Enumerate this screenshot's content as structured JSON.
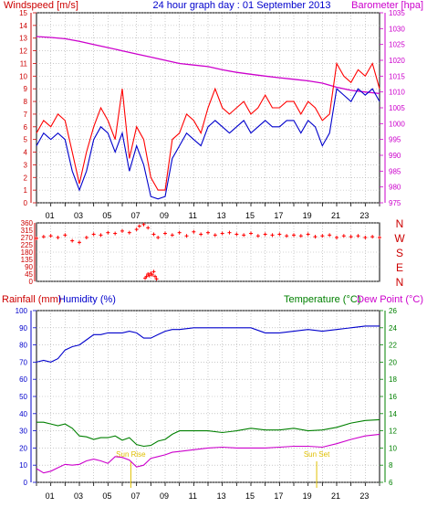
{
  "chart_data": [
    {
      "type": "line",
      "title": "24 hour graph day : 01 September 2013",
      "left_axis_label": "Windspeed [m/s]",
      "right_axis_label": "Barometer [hpa]",
      "x_ticks": [
        "01",
        "03",
        "05",
        "07",
        "09",
        "11",
        "13",
        "15",
        "17",
        "19",
        "21",
        "23"
      ],
      "x_range": [
        0,
        24
      ],
      "left_ylim": [
        0,
        15
      ],
      "left_ticks": [
        0,
        1,
        2,
        3,
        4,
        5,
        6,
        7,
        8,
        9,
        10,
        11,
        12,
        13,
        14,
        15
      ],
      "right_ylim": [
        975,
        1035
      ],
      "right_ticks": [
        975,
        980,
        985,
        990,
        995,
        1000,
        1005,
        1010,
        1015,
        1020,
        1025,
        1030,
        1035
      ],
      "grid": true,
      "series": [
        {
          "name": "",
          "color": "#ff0000",
          "axis": "left",
          "x": [
            0,
            0.5,
            1,
            1.5,
            2,
            2.5,
            3,
            3.5,
            4,
            4.5,
            5,
            5.5,
            6,
            6.5,
            7,
            7.5,
            8,
            8.5,
            9,
            9.5,
            10,
            10.5,
            11,
            11.5,
            12,
            12.5,
            13,
            13.5,
            14,
            14.5,
            15,
            15.5,
            16,
            16.5,
            17,
            17.5,
            18,
            18.5,
            19,
            19.5,
            20,
            20.5,
            21,
            21.5,
            22,
            22.5,
            23,
            23.5,
            24
          ],
          "values": [
            5.5,
            6.5,
            6,
            7,
            6.5,
            4,
            1.5,
            4,
            6,
            7.5,
            6.5,
            5,
            9,
            3.5,
            6,
            5,
            2,
            1,
            1,
            5,
            5.5,
            7,
            6.5,
            5.5,
            7.5,
            9,
            7.5,
            7,
            7.5,
            8,
            7,
            7.5,
            8.5,
            7.5,
            7.5,
            8,
            8,
            7,
            8,
            7.5,
            6.5,
            7,
            11,
            10,
            9.5,
            10.5,
            10,
            11,
            9
          ]
        },
        {
          "name": "",
          "color": "#0000cc",
          "axis": "left",
          "x": [
            0,
            0.5,
            1,
            1.5,
            2,
            2.5,
            3,
            3.5,
            4,
            4.5,
            5,
            5.5,
            6,
            6.5,
            7,
            7.5,
            8,
            8.5,
            9,
            9.5,
            10,
            10.5,
            11,
            11.5,
            12,
            12.5,
            13,
            13.5,
            14,
            14.5,
            15,
            15.5,
            16,
            16.5,
            17,
            17.5,
            18,
            18.5,
            19,
            19.5,
            20,
            20.5,
            21,
            21.5,
            22,
            22.5,
            23,
            23.5,
            24
          ],
          "values": [
            4.5,
            5.5,
            5,
            5.5,
            5,
            2.5,
            1,
            2.5,
            5,
            6,
            5.5,
            4,
            5.5,
            2.5,
            4.5,
            3,
            0.5,
            0.3,
            0.5,
            3.5,
            4.5,
            5.5,
            5,
            4.5,
            6,
            6.5,
            6,
            5.5,
            6,
            6.5,
            5.5,
            6,
            6.5,
            6,
            6,
            6.5,
            6.5,
            5.5,
            6.5,
            6,
            4.5,
            5.5,
            9,
            8.5,
            8,
            9,
            8.5,
            9,
            8
          ]
        },
        {
          "name": "",
          "color": "#cc00cc",
          "axis": "right",
          "x": [
            0,
            1,
            2,
            3,
            4,
            5,
            6,
            7,
            8,
            9,
            10,
            11,
            12,
            13,
            14,
            15,
            16,
            17,
            18,
            19,
            20,
            21,
            22,
            23,
            24
          ],
          "values": [
            1027.5,
            1027.2,
            1026.8,
            1026,
            1025,
            1024,
            1023,
            1022,
            1021,
            1020,
            1019,
            1018.5,
            1018,
            1017,
            1016.2,
            1015.6,
            1015,
            1014.5,
            1014,
            1013.5,
            1012.8,
            1011.5,
            1010.5,
            1010,
            1009.5
          ]
        }
      ]
    },
    {
      "type": "scatter",
      "title": "",
      "x_ticks": [
        "01",
        "03",
        "05",
        "07",
        "09",
        "11",
        "13",
        "15",
        "17",
        "19",
        "21",
        "23"
      ],
      "x_range": [
        0,
        24
      ],
      "ylim": [
        0,
        360
      ],
      "left_ticks": [
        0,
        45,
        90,
        135,
        180,
        225,
        270,
        315,
        360
      ],
      "right_labels": [
        "N",
        "W",
        "S",
        "E",
        "N"
      ],
      "grid": true,
      "series": [
        {
          "name": "",
          "color": "#ff0000",
          "x": [
            0,
            0.5,
            1,
            1.5,
            2,
            2.5,
            3,
            3.5,
            4,
            4.5,
            5,
            5.5,
            6,
            6.5,
            7,
            7.2,
            7.5,
            7.8,
            8.2,
            8.5,
            9,
            9.5,
            10,
            10.5,
            11,
            11.5,
            12,
            12.5,
            13,
            13.5,
            14,
            14.5,
            15,
            15.5,
            16,
            16.5,
            17,
            17.5,
            18,
            18.5,
            19,
            19.5,
            20,
            20.5,
            21,
            21.5,
            22,
            22.5,
            23,
            23.5,
            24
          ],
          "values": [
            265,
            275,
            280,
            270,
            285,
            250,
            240,
            270,
            290,
            285,
            300,
            295,
            310,
            300,
            320,
            340,
            350,
            330,
            290,
            270,
            295,
            285,
            300,
            280,
            305,
            290,
            300,
            285,
            295,
            300,
            290,
            285,
            295,
            280,
            290,
            285,
            290,
            280,
            285,
            280,
            290,
            275,
            280,
            285,
            270,
            280,
            275,
            280,
            270,
            275,
            270
          ]
        },
        {
          "name": "",
          "color": "#ff0000",
          "x": [
            7.6,
            7.7,
            7.8,
            7.9,
            8.0,
            8.1,
            8.2,
            8.3,
            8.4
          ],
          "values": [
            20,
            30,
            45,
            35,
            50,
            40,
            60,
            30,
            15
          ]
        }
      ]
    },
    {
      "type": "line",
      "title": "",
      "left_axis_labels": [
        "Rainfall (mm)",
        "Humidity (%)"
      ],
      "right_axis_labels": [
        "Temperature (°C)",
        "Dew Point (°C)"
      ],
      "x_ticks": [
        "01",
        "03",
        "05",
        "07",
        "09",
        "11",
        "13",
        "15",
        "17",
        "19",
        "21",
        "23"
      ],
      "x_range": [
        0,
        24
      ],
      "left_ylim": [
        0,
        100
      ],
      "left_ticks": [
        0,
        10,
        20,
        30,
        40,
        50,
        60,
        70,
        80,
        90,
        100
      ],
      "right_ylim": [
        6,
        26
      ],
      "right_ticks": [
        6,
        8,
        10,
        12,
        14,
        16,
        18,
        20,
        22,
        24,
        26
      ],
      "grid": true,
      "annotations": [
        {
          "text": "Sun Rise",
          "x": 6.6
        },
        {
          "text": "Sun Set",
          "x": 19.6
        }
      ],
      "series": [
        {
          "name": "",
          "color": "#0000cc",
          "axis": "left",
          "x": [
            0,
            0.5,
            1,
            1.5,
            2,
            2.5,
            3,
            3.5,
            4,
            4.5,
            5,
            5.5,
            6,
            6.5,
            7,
            7.5,
            8,
            8.5,
            9,
            9.5,
            10,
            11,
            12,
            13,
            14,
            15,
            16,
            17,
            18,
            19,
            20,
            21,
            22,
            23,
            24
          ],
          "values": [
            70,
            71,
            70,
            72,
            77,
            79,
            80,
            83,
            86,
            86,
            87,
            87,
            87,
            88,
            87,
            84,
            84,
            86,
            88,
            89,
            89,
            90,
            90,
            90,
            90,
            90,
            87,
            87,
            88,
            89,
            88,
            89,
            90,
            91,
            91
          ]
        },
        {
          "name": "",
          "color": "#008000",
          "axis": "right",
          "x": [
            0,
            0.5,
            1,
            1.5,
            2,
            2.5,
            3,
            3.5,
            4,
            4.5,
            5,
            5.5,
            6,
            6.5,
            7,
            7.5,
            8,
            8.5,
            9,
            9.5,
            10,
            11,
            12,
            13,
            14,
            15,
            16,
            17,
            18,
            19,
            20,
            21,
            22,
            23,
            24
          ],
          "values": [
            13,
            13,
            12.8,
            12.6,
            12.8,
            12.3,
            11.4,
            11.3,
            11.0,
            11.2,
            11.2,
            11.4,
            10.9,
            11.2,
            10.4,
            10.2,
            10.3,
            10.8,
            11.0,
            11.6,
            12.0,
            12.0,
            12.0,
            11.8,
            12.0,
            12.3,
            12.1,
            12.1,
            12.3,
            12.0,
            12.1,
            12.4,
            12.9,
            13.2,
            13.3
          ]
        },
        {
          "name": "",
          "color": "#cc00cc",
          "axis": "right",
          "x": [
            0,
            0.5,
            1,
            1.5,
            2,
            2.5,
            3,
            3.5,
            4,
            4.5,
            5,
            5.5,
            6,
            6.5,
            7,
            7.5,
            8,
            8.5,
            9,
            9.5,
            10,
            11,
            12,
            13,
            14,
            15,
            16,
            17,
            18,
            19,
            20,
            21,
            22,
            23,
            24
          ],
          "values": [
            7.6,
            7.1,
            7.3,
            7.7,
            8.1,
            8.0,
            8.1,
            8.5,
            8.7,
            8.5,
            8.2,
            9.0,
            8.9,
            8.6,
            7.8,
            8.0,
            8.8,
            9.0,
            9.2,
            9.5,
            9.6,
            9.8,
            10.0,
            10.1,
            10.0,
            10.0,
            10.0,
            10.1,
            10.2,
            10.2,
            10.1,
            10.5,
            11.0,
            11.4,
            11.6
          ]
        }
      ]
    }
  ]
}
